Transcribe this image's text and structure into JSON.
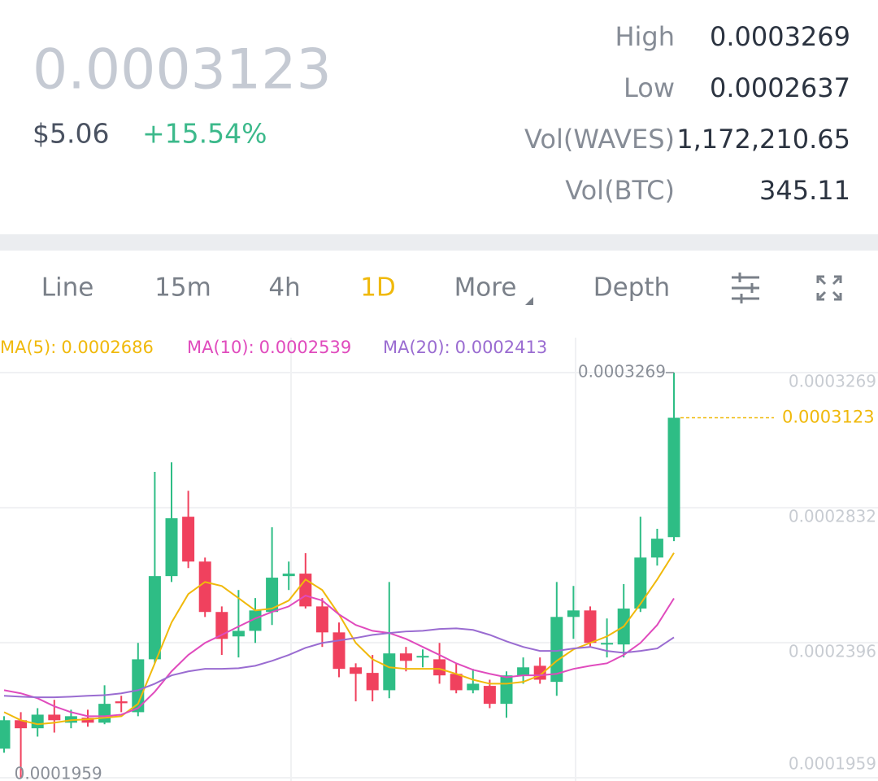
{
  "header": {
    "price": "0.0003123",
    "usd": "$5.06",
    "change": "+15.54%",
    "stats": [
      {
        "label": "High",
        "value": "0.0003269"
      },
      {
        "label": "Low",
        "value": "0.0002637"
      },
      {
        "label": "Vol(WAVES)",
        "value": "1,172,210.65"
      },
      {
        "label": "Vol(BTC)",
        "value": "345.11"
      }
    ]
  },
  "tabs": [
    "Line",
    "15m",
    "4h",
    "1D",
    "More",
    "Depth"
  ],
  "chart_data": {
    "type": "candlestick",
    "up_color": "#2ebd85",
    "down_color": "#f0415e",
    "open": [
      0.0002053,
      0.0002145,
      0.0002119,
      0.0002163,
      0.0002137,
      0.0002153,
      0.0002137,
      0.0002206,
      0.0002171,
      0.0002342,
      0.0002611,
      0.0002803,
      0.0002658,
      0.0002495,
      0.0002416,
      0.0002434,
      0.0002495,
      0.0002611,
      0.0002619,
      0.0002513,
      0.0002429,
      0.0002316,
      0.0002298,
      0.0002242,
      0.0002361,
      0.0002348,
      0.0002342,
      0.0002295,
      0.0002242,
      0.0002256,
      0.0002198,
      0.000229,
      0.0002321,
      0.0002269,
      0.0002479,
      0.00025,
      0.000239,
      0.000239,
      0.0002506,
      0.0002671,
      0.0002737
    ],
    "high": [
      0.0002158,
      0.0002171,
      0.0002184,
      0.0002211,
      0.0002179,
      0.0002179,
      0.0002258,
      0.0002224,
      0.0002395,
      0.0002948,
      0.0002979,
      0.0002887,
      0.0002671,
      0.0002513,
      0.0002566,
      0.000254,
      0.0002769,
      0.0002658,
      0.0002685,
      0.000254,
      0.0002461,
      0.0002329,
      0.0002356,
      0.0002592,
      0.0002382,
      0.0002374,
      0.0002395,
      0.0002329,
      0.0002311,
      0.0002276,
      0.0002303,
      0.0002348,
      0.0002348,
      0.0002592,
      0.0002579,
      0.0002513,
      0.0002474,
      0.0002585,
      0.0002803,
      0.0002764,
      0.0003269
    ],
    "low": [
      0.000204,
      0.0001959,
      0.0002092,
      0.0002105,
      0.0002119,
      0.0002124,
      0.0002132,
      0.0002171,
      0.0002158,
      0.0002329,
      0.0002592,
      0.0002637,
      0.0002479,
      0.0002356,
      0.0002348,
      0.0002395,
      0.0002453,
      0.0002566,
      0.0002506,
      0.0002382,
      0.0002284,
      0.0002206,
      0.0002206,
      0.0002216,
      0.0002303,
      0.0002316,
      0.0002263,
      0.0002232,
      0.0002232,
      0.0002184,
      0.0002153,
      0.0002263,
      0.0002263,
      0.0002224,
      0.0002408,
      0.0002382,
      0.0002348,
      0.0002348,
      0.0002495,
      0.0002645,
      0.0002724
    ],
    "close": [
      0.0002145,
      0.0002119,
      0.0002163,
      0.0002145,
      0.0002158,
      0.0002137,
      0.0002198,
      0.00022,
      0.0002342,
      0.0002611,
      0.0002798,
      0.0002658,
      0.0002495,
      0.0002408,
      0.0002434,
      0.00025,
      0.0002606,
      0.0002619,
      0.0002513,
      0.0002429,
      0.0002311,
      0.0002295,
      0.0002242,
      0.0002361,
      0.0002337,
      0.0002353,
      0.000229,
      0.0002242,
      0.0002263,
      0.0002198,
      0.000229,
      0.0002316,
      0.0002276,
      0.0002479,
      0.00025,
      0.0002395,
      0.0002395,
      0.0002506,
      0.0002671,
      0.0002732,
      0.0003123
    ],
    "series": [
      {
        "name": "MA(5):",
        "color": "#f0b90b",
        "values": [
          0.0002171,
          0.0002145,
          0.0002132,
          0.0002137,
          0.0002145,
          0.0002148,
          0.0002153,
          0.0002158,
          0.0002198,
          0.0002329,
          0.0002461,
          0.0002553,
          0.0002592,
          0.0002579,
          0.000254,
          0.00025,
          0.0002506,
          0.0002532,
          0.00026,
          0.0002566,
          0.0002487,
          0.0002395,
          0.0002342,
          0.0002316,
          0.0002311,
          0.0002311,
          0.0002311,
          0.0002295,
          0.0002276,
          0.0002263,
          0.0002263,
          0.0002269,
          0.000229,
          0.0002337,
          0.0002374,
          0.0002395,
          0.0002416,
          0.0002448,
          0.0002521,
          0.00026,
          0.0002686
        ]
      },
      {
        "name": "MA(10):",
        "color": "#e04bbd",
        "values": [
          0.0002242,
          0.0002232,
          0.0002216,
          0.000219,
          0.0002171,
          0.0002158,
          0.0002158,
          0.0002163,
          0.0002184,
          0.0002237,
          0.0002303,
          0.0002356,
          0.0002395,
          0.0002421,
          0.0002448,
          0.0002474,
          0.0002495,
          0.0002513,
          0.0002548,
          0.0002532,
          0.0002487,
          0.0002453,
          0.0002434,
          0.0002427,
          0.0002408,
          0.0002382,
          0.0002356,
          0.0002329,
          0.0002308,
          0.0002295,
          0.0002284,
          0.000229,
          0.000229,
          0.0002295,
          0.0002311,
          0.0002321,
          0.0002329,
          0.0002356,
          0.0002395,
          0.0002453,
          0.0002539
        ]
      },
      {
        "name": "MA(20):",
        "color": "#9a6cd1",
        "values": [
          0.0002224,
          0.0002221,
          0.0002219,
          0.0002219,
          0.0002221,
          0.0002224,
          0.0002226,
          0.0002232,
          0.0002242,
          0.0002263,
          0.000229,
          0.0002303,
          0.0002311,
          0.0002311,
          0.0002313,
          0.0002321,
          0.0002337,
          0.0002356,
          0.0002379,
          0.0002395,
          0.0002403,
          0.0002411,
          0.0002421,
          0.0002427,
          0.0002432,
          0.0002434,
          0.000244,
          0.0002442,
          0.0002437,
          0.0002421,
          0.00024,
          0.0002382,
          0.0002369,
          0.0002369,
          0.0002377,
          0.0002382,
          0.0002369,
          0.0002363,
          0.0002369,
          0.0002377,
          0.0002413
        ]
      }
    ],
    "ylim": [
      0.0001959,
      0.0003269
    ],
    "yticks": [
      0.0003269,
      0.0002832,
      0.0002396,
      0.0001959
    ],
    "grid": true
  }
}
